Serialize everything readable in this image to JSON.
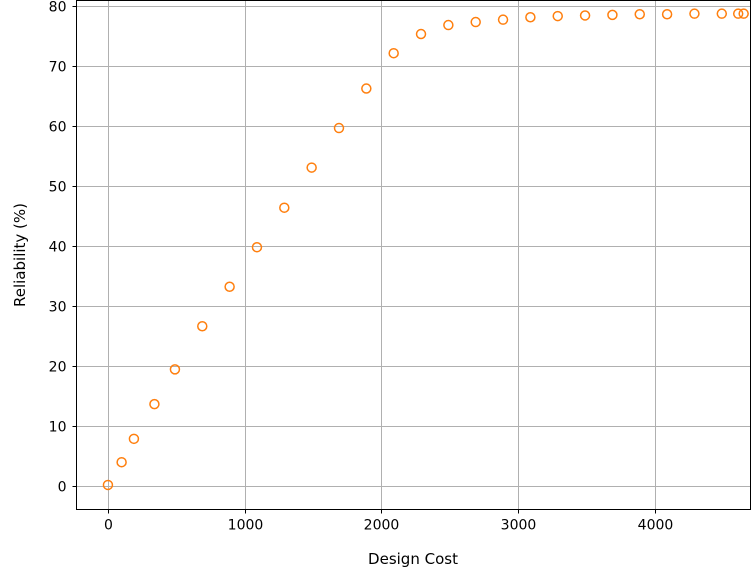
{
  "chart_data": {
    "type": "scatter",
    "title": "",
    "xlabel": "Design Cost",
    "ylabel": "Reliability (%)",
    "xlim": [
      -230,
      4700
    ],
    "ylim": [
      -4,
      81
    ],
    "xticks": [
      0,
      1000,
      2000,
      3000,
      4000
    ],
    "yticks": [
      0,
      10,
      20,
      30,
      40,
      50,
      60,
      70,
      80
    ],
    "grid": true,
    "marker": "hollow-circle",
    "colors": {
      "marker": "#ff7f0e",
      "grid": "#b0b0b0",
      "axes": "#000000"
    },
    "series": [
      {
        "x": [
          0,
          100,
          190,
          340,
          490,
          690,
          890,
          1090,
          1290,
          1490,
          1690,
          1890,
          2090,
          2290,
          2490,
          2690,
          2890,
          3090,
          3290,
          3490,
          3690,
          3890,
          4090,
          4290,
          4490,
          4610,
          4650
        ],
        "y": [
          0.1,
          3.9,
          7.8,
          13.6,
          19.4,
          26.6,
          33.2,
          39.8,
          46.4,
          53.1,
          59.7,
          66.3,
          72.2,
          75.4,
          76.9,
          77.4,
          77.8,
          78.2,
          78.4,
          78.5,
          78.6,
          78.7,
          78.7,
          78.8,
          78.8,
          78.8,
          78.8
        ]
      }
    ]
  }
}
